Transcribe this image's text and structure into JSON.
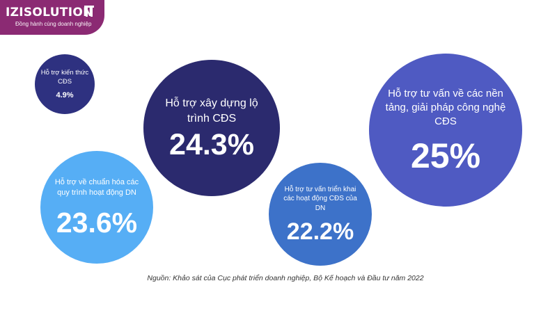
{
  "logo": {
    "brand": "IZISOLUTION",
    "tagline": "Đồng hành cùng doanh nghiệp"
  },
  "chart_data": {
    "type": "bubble",
    "categories": [
      "Hỗ trợ kiến thức CĐS",
      "Hỗ trợ xây dựng lộ trình CĐS",
      "Hỗ trợ tư vấn về các nền tảng, giải pháp công nghệ CĐS",
      "Hỗ trợ về chuẩn hóa các quy trình hoạt động DN",
      "Hỗ trợ tư vấn triển khai các hoạt động CĐS của DN"
    ],
    "values": [
      4.9,
      24.3,
      25,
      23.6,
      22.2
    ],
    "value_labels": [
      "4.9%",
      "24.3%",
      "25%",
      "23.6%",
      "22.2%"
    ],
    "colors": [
      "#2e3180",
      "#2b2a6e",
      "#4f5ac2",
      "#56aef5",
      "#3d72c9"
    ],
    "source": "Nguồn: Khảo sát của Cục phát triển doanh nghiệp, Bộ Kế hoạch và Đầu tư năm 2022"
  }
}
